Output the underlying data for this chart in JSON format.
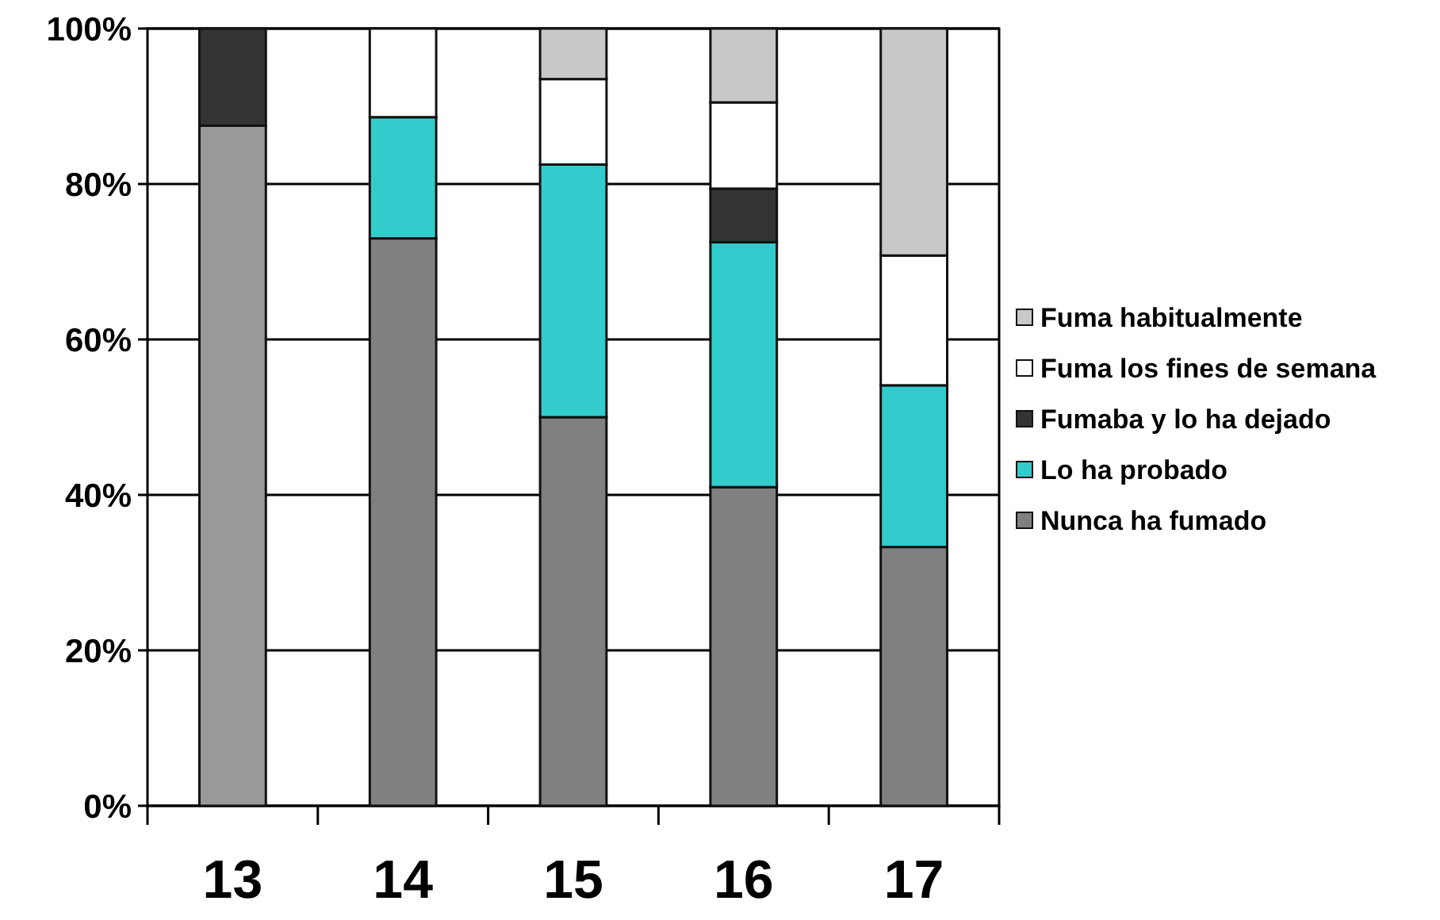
{
  "chart_data": {
    "type": "bar",
    "stacked": true,
    "categories": [
      "13",
      "14",
      "15",
      "16",
      "17"
    ],
    "series": [
      {
        "name": "Nunca ha fumado",
        "color": "#808080",
        "colors": [
          "#999999",
          "#808080",
          "#808080",
          "#808080",
          "#808080"
        ],
        "values": [
          87.5,
          73,
          50,
          41,
          33.3
        ]
      },
      {
        "name": "Lo ha probado",
        "color": "#33cccc",
        "values": [
          null,
          15.6,
          32.5,
          31.5,
          20.8
        ]
      },
      {
        "name": "Fumaba y lo ha dejado",
        "color": "#333333",
        "values": [
          12.5,
          null,
          null,
          6.9,
          null
        ]
      },
      {
        "name": "Fuma los fines de semana",
        "color": "#ffffff",
        "values": [
          null,
          11.4,
          11,
          11.1,
          16.7
        ]
      },
      {
        "name": "Fuma habitualmente",
        "color": "#c8c8c8",
        "values": [
          null,
          null,
          6.5,
          9.5,
          29.2
        ]
      }
    ],
    "ylim": [
      0,
      100
    ],
    "yticks": [
      {
        "value": 0,
        "label": "0%"
      },
      {
        "value": 20,
        "label": "20%"
      },
      {
        "value": 40,
        "label": "40%"
      },
      {
        "value": 60,
        "label": "60%"
      },
      {
        "value": 80,
        "label": "80%"
      },
      {
        "value": 100,
        "label": "100%"
      }
    ],
    "grid": "y",
    "legend": "right"
  }
}
